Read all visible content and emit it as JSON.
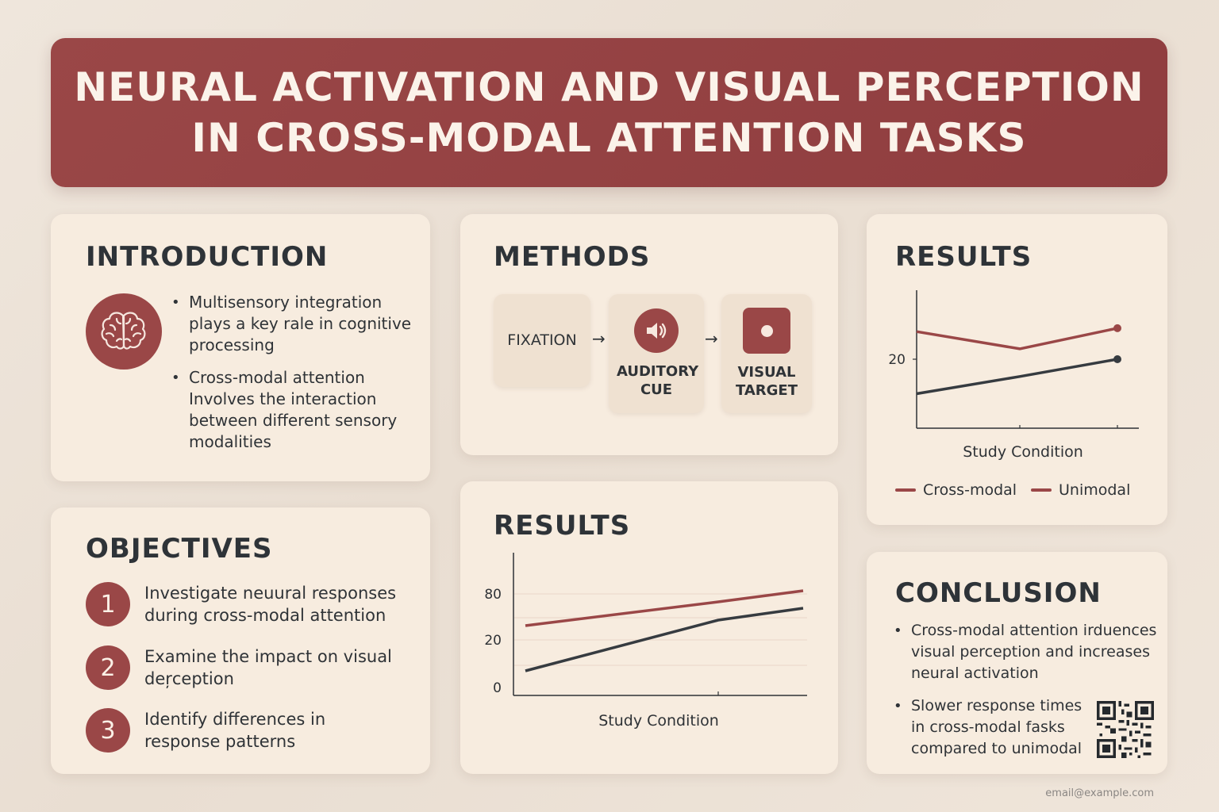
{
  "banner": {
    "title_line1": "NEURAL ACTIVATION AND VISUAL PERCEPTION",
    "title_line2": "IN CROSS-MODAL ATTENTION TASKS"
  },
  "introduction": {
    "heading": "INTRODUCTION",
    "icon": "brain-icon",
    "bullets": [
      "Multisensory integration plays a key rale in cognitive processing",
      "Cross-modal attention Involves the interaction between different sensory modalities"
    ]
  },
  "objectives": {
    "heading": "OBJECTIVES",
    "items": [
      {
        "num": "1",
        "text": "Investigate neuural responses during cross-modal attention"
      },
      {
        "num": "2",
        "text": "Examine the impact on visual deŗception"
      },
      {
        "num": "3",
        "text": "Identify differences in response patterns"
      }
    ]
  },
  "methods": {
    "heading": "METHODS",
    "steps": [
      {
        "label": "FIXATION",
        "icon": ""
      },
      {
        "label": "AUDITORY CUE",
        "icon": "speaker-icon"
      },
      {
        "label": "VISUAL TARGET",
        "icon": "target-square-icon"
      }
    ],
    "arrow": "→"
  },
  "results_top": {
    "heading": "RESULTS"
  },
  "results_bottom": {
    "heading": "RESULTS"
  },
  "conclusion": {
    "heading": "CONCLUSION",
    "bullets": [
      "Cross-modal attention irduences visual perception and increases neural activation",
      "Slower response times in cross-modal fasks compared to unimodal"
    ],
    "qr_icon": "qr-code-icon"
  },
  "footer": {
    "email": "email@example.com"
  },
  "colors": {
    "accent": "#9a4747",
    "dark_line": "#363b40",
    "card": "#f7ecdf",
    "background": "#ece2d7"
  },
  "chart_data": [
    {
      "type": "line",
      "xlabel": "Study Condition",
      "ylabel": "",
      "x": [
        1,
        2,
        3
      ],
      "yticks": [
        "20"
      ],
      "ylim": [
        0,
        40
      ],
      "series": [
        {
          "name": "Cross-modal",
          "color": "#363b40",
          "values": [
            10,
            15,
            20
          ],
          "endpoint_marker": true
        },
        {
          "name": "Unimodal",
          "color": "#9a4747",
          "values": [
            28,
            23,
            29
          ],
          "endpoint_marker": true
        }
      ],
      "legend": "bottom",
      "legend_colors": [
        "#9a4747",
        "#9a4747"
      ]
    },
    {
      "type": "line",
      "xlabel": "Study Condition",
      "ylabel": "",
      "x": [
        1,
        2,
        3
      ],
      "yticks": [
        "0",
        "20",
        "80"
      ],
      "series": [
        {
          "color": "#9a4747",
          "values": [
            88,
            118,
            132
          ]
        },
        {
          "color": "#363b40",
          "values": [
            31,
            95,
            110
          ]
        }
      ],
      "grid": true
    }
  ]
}
